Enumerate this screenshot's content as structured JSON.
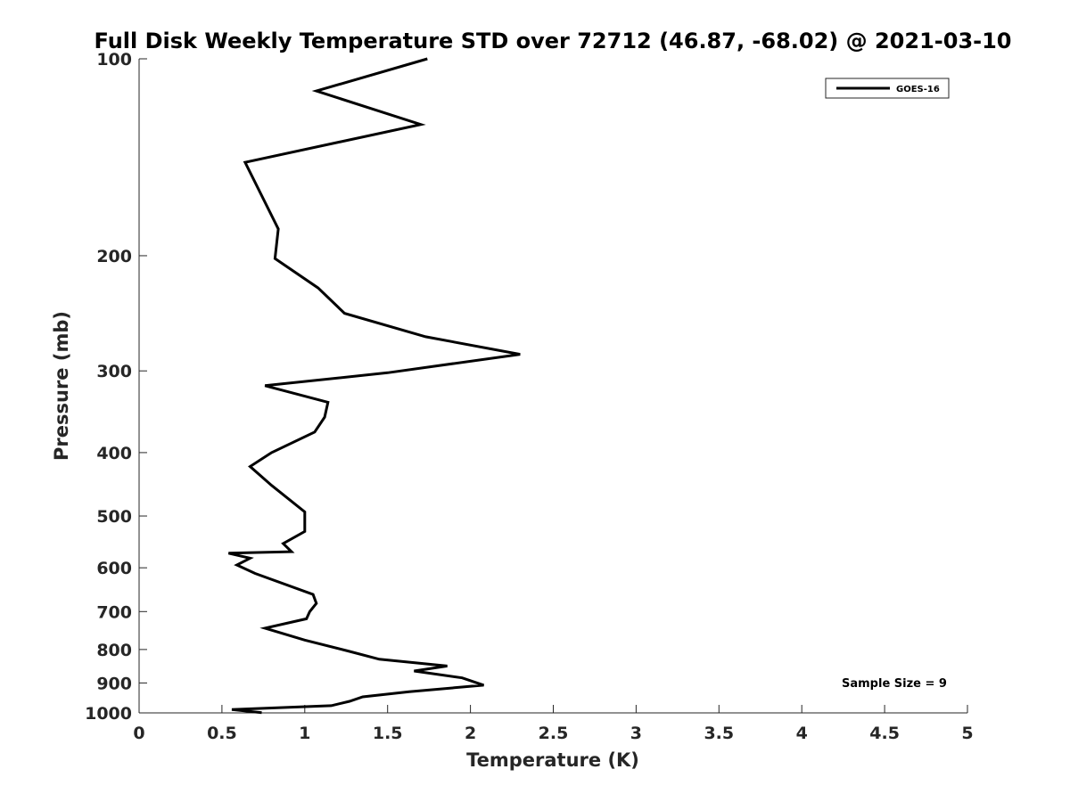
{
  "chart_data": {
    "type": "line",
    "title": "Full Disk Weekly Temperature STD over 72712 (46.87, -68.02) @ 2021-03-10",
    "xlabel": "Temperature (K)",
    "ylabel": "Pressure (mb)",
    "xlim": [
      0,
      5
    ],
    "ylim": [
      100,
      1000
    ],
    "y_scale": "log",
    "y_reversed": true,
    "x_ticks": [
      0,
      0.5,
      1,
      1.5,
      2,
      2.5,
      3,
      3.5,
      4,
      4.5,
      5
    ],
    "x_tick_labels": [
      "0",
      "0.5",
      "1",
      "1.5",
      "2",
      "2.5",
      "3",
      "3.5",
      "4",
      "4.5",
      "5"
    ],
    "y_ticks": [
      100,
      200,
      300,
      400,
      500,
      600,
      700,
      800,
      900,
      1000
    ],
    "y_tick_labels": [
      "100",
      "200",
      "300",
      "400",
      "500",
      "600",
      "700",
      "800",
      "900",
      "1000"
    ],
    "grid": false,
    "legend_position": "top-right",
    "annotation": "Sample Size = 9",
    "series": [
      {
        "name": "GOES-16",
        "color": "#000000",
        "x": [
          1.74,
          1.07,
          1.7,
          0.64,
          0.84,
          0.82,
          1.08,
          1.24,
          1.73,
          2.3,
          1.5,
          0.76,
          1.14,
          1.12,
          1.06,
          0.8,
          0.67,
          0.8,
          1.0,
          1.0,
          0.87,
          0.92,
          0.54,
          0.67,
          0.59,
          0.7,
          1.05,
          1.07,
          1.03,
          1.01,
          0.76,
          1.0,
          1.26,
          1.45,
          1.86,
          1.66,
          1.95,
          2.08,
          1.63,
          1.35,
          1.27,
          1.16,
          0.56,
          0.74
        ],
        "y": [
          100,
          112,
          126,
          144,
          182,
          202,
          224,
          245,
          266,
          283,
          302,
          316,
          335,
          353,
          372,
          400,
          420,
          449,
          493,
          528,
          551,
          567,
          570,
          580,
          594,
          612,
          659,
          680,
          700,
          718,
          742,
          774,
          804,
          828,
          848,
          863,
          884,
          907,
          928,
          945,
          960,
          975,
          988,
          999
        ]
      }
    ]
  }
}
